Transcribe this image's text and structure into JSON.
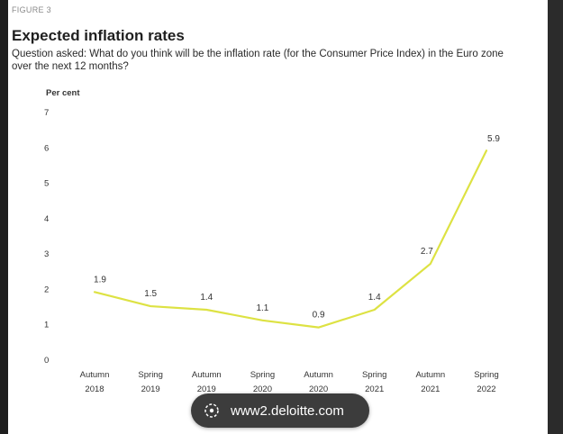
{
  "figure_label": "FIGURE 3",
  "title": "Expected inflation rates",
  "question": "Question asked: What do you think will be the inflation rate (for the Consumer Price Index) in the Euro zone over the next 12 months?",
  "source_pill": {
    "icon": "globe-icon",
    "url": "www2.deloitte.com"
  },
  "chart_data": {
    "type": "line",
    "title": "",
    "xlabel": "",
    "ylabel": "Per cent",
    "ylim": [
      0,
      7
    ],
    "yticks": [
      "0",
      "1",
      "2",
      "3",
      "4",
      "5",
      "6",
      "7"
    ],
    "categories": [
      [
        "Autumn",
        "2018"
      ],
      [
        "Spring",
        "2019"
      ],
      [
        "Autumn",
        "2019"
      ],
      [
        "Spring",
        "2020"
      ],
      [
        "Autumn",
        "2020"
      ],
      [
        "Spring",
        "2021"
      ],
      [
        "Autumn",
        "2021"
      ],
      [
        "Spring",
        "2022"
      ]
    ],
    "values": [
      1.9,
      1.5,
      1.4,
      1.1,
      0.9,
      1.4,
      2.7,
      5.9
    ],
    "data_labels": [
      "1.9",
      "1.5",
      "1.4",
      "1.1",
      "0.9",
      "1.4",
      "2.7",
      "5.9"
    ],
    "line_color": "#dde243",
    "grid": false,
    "legend": "none"
  }
}
